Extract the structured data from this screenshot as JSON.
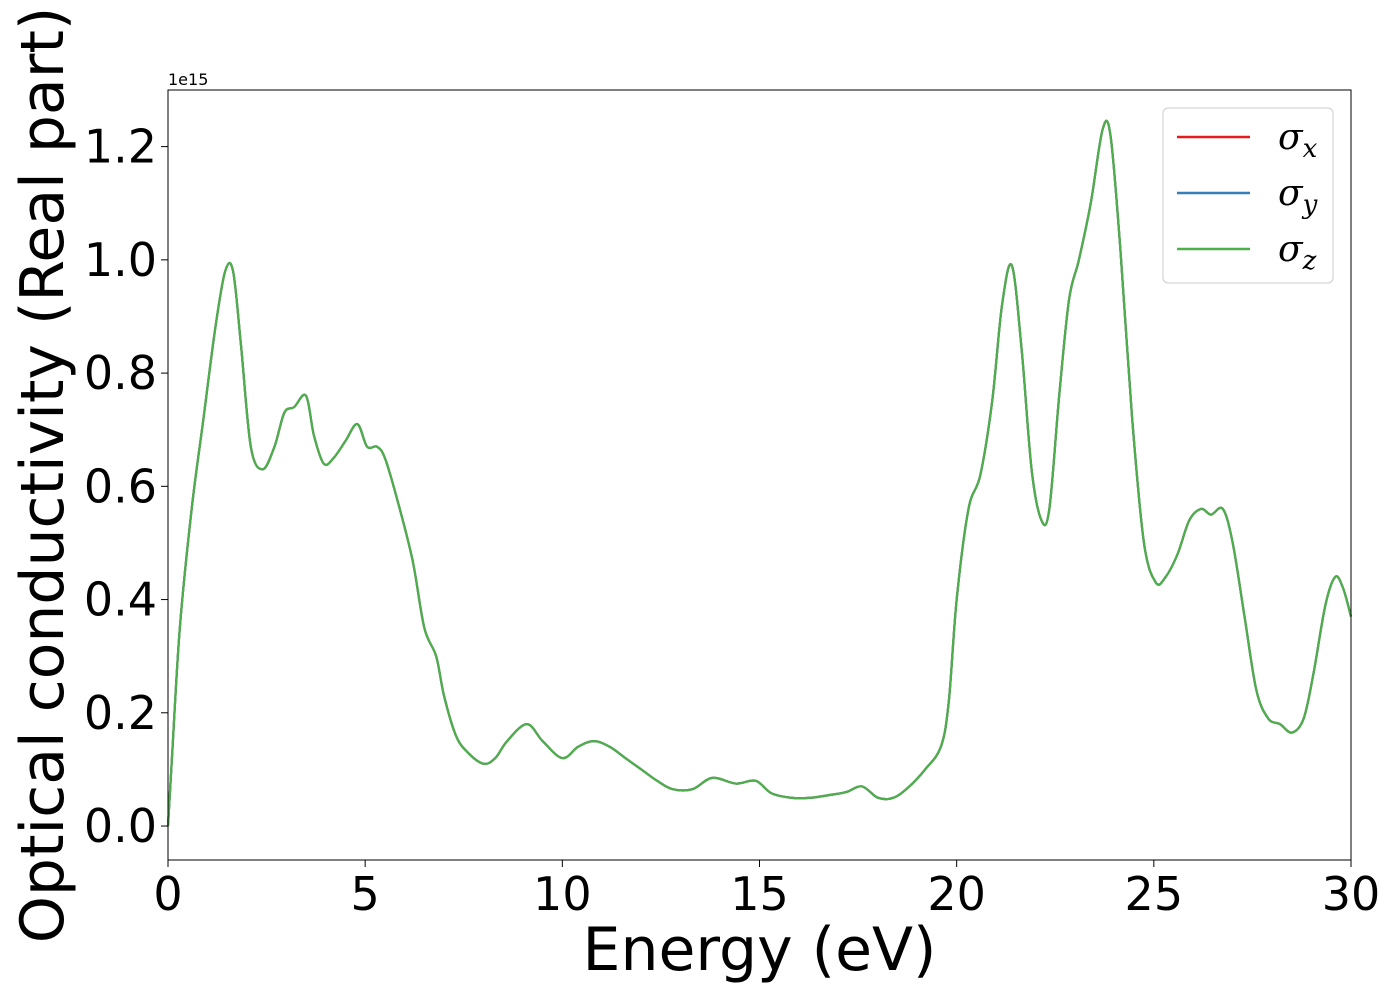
{
  "chart_data": {
    "type": "line",
    "xlabel": "Energy (eV)",
    "ylabel": "Optical conductivity (Real part)",
    "y_offset_text": "1e15",
    "y_scale": 1000000000000000.0,
    "xlim": [
      0,
      30
    ],
    "ylim": [
      -0.06,
      1.3
    ],
    "xticks": [
      0,
      5,
      10,
      15,
      20,
      25,
      30
    ],
    "xtick_labels": [
      "0",
      "5",
      "10",
      "15",
      "20",
      "25",
      "30"
    ],
    "yticks": [
      0.0,
      0.2,
      0.4,
      0.6,
      0.8,
      1.0,
      1.2
    ],
    "ytick_labels": [
      "0.0",
      "0.2",
      "0.4",
      "0.6",
      "0.8",
      "1.0",
      "1.2"
    ],
    "grid": false,
    "legend_position": "top-right",
    "series": [
      {
        "name": "σx",
        "symbol": "σ",
        "sub": "x",
        "color": "#e41a1c"
      },
      {
        "name": "σy",
        "symbol": "σ",
        "sub": "y",
        "color": "#377eb8"
      },
      {
        "name": "σz",
        "symbol": "σ",
        "sub": "z",
        "color": "#4daf4a"
      }
    ],
    "x": [
      0,
      0.1,
      0.3,
      0.6,
      0.9,
      1.2,
      1.45,
      1.65,
      1.85,
      2.1,
      2.4,
      2.7,
      2.95,
      3.2,
      3.5,
      3.7,
      3.95,
      4.2,
      4.5,
      4.8,
      5.05,
      5.3,
      5.5,
      5.8,
      6.2,
      6.5,
      6.8,
      7.0,
      7.3,
      7.6,
      8.0,
      8.3,
      8.6,
      9.1,
      9.5,
      10.0,
      10.4,
      10.8,
      11.2,
      11.6,
      12.0,
      12.4,
      12.8,
      13.3,
      13.8,
      14.4,
      14.9,
      15.3,
      15.8,
      16.3,
      16.8,
      17.2,
      17.6,
      18.0,
      18.4,
      18.8,
      19.2,
      19.6,
      19.8,
      20.0,
      20.3,
      20.6,
      20.9,
      21.15,
      21.4,
      21.65,
      21.9,
      22.15,
      22.35,
      22.6,
      22.85,
      23.1,
      23.4,
      23.7,
      23.9,
      24.15,
      24.45,
      24.75,
      25.05,
      25.3,
      25.6,
      25.9,
      26.2,
      26.45,
      26.75,
      27.0,
      27.3,
      27.6,
      27.9,
      28.2,
      28.5,
      28.8,
      29.05,
      29.35,
      29.6,
      29.8,
      30.0
    ],
    "values_x": [
      0.0,
      0.12,
      0.35,
      0.56,
      0.72,
      0.88,
      0.98,
      0.98,
      0.85,
      0.67,
      0.63,
      0.67,
      0.73,
      0.74,
      0.76,
      0.69,
      0.64,
      0.65,
      0.68,
      0.71,
      0.67,
      0.67,
      0.65,
      0.58,
      0.47,
      0.35,
      0.3,
      0.23,
      0.16,
      0.13,
      0.11,
      0.12,
      0.15,
      0.18,
      0.15,
      0.12,
      0.14,
      0.15,
      0.14,
      0.12,
      0.1,
      0.08,
      0.065,
      0.065,
      0.085,
      0.075,
      0.08,
      0.058,
      0.05,
      0.05,
      0.055,
      0.06,
      0.07,
      0.05,
      0.05,
      0.07,
      0.1,
      0.14,
      0.22,
      0.4,
      0.56,
      0.62,
      0.75,
      0.92,
      0.99,
      0.84,
      0.63,
      0.54,
      0.56,
      0.76,
      0.93,
      1.0,
      1.1,
      1.23,
      1.22,
      1.02,
      0.72,
      0.5,
      0.43,
      0.44,
      0.48,
      0.54,
      0.56,
      0.55,
      0.56,
      0.5,
      0.37,
      0.24,
      0.19,
      0.18,
      0.165,
      0.19,
      0.27,
      0.39,
      0.44,
      0.42,
      0.37
    ],
    "values_y": [
      0.0,
      0.12,
      0.35,
      0.56,
      0.72,
      0.88,
      0.98,
      0.98,
      0.85,
      0.67,
      0.63,
      0.67,
      0.73,
      0.74,
      0.76,
      0.69,
      0.64,
      0.65,
      0.68,
      0.71,
      0.67,
      0.67,
      0.65,
      0.58,
      0.47,
      0.35,
      0.3,
      0.23,
      0.16,
      0.13,
      0.11,
      0.12,
      0.15,
      0.18,
      0.15,
      0.12,
      0.14,
      0.15,
      0.14,
      0.12,
      0.1,
      0.08,
      0.065,
      0.065,
      0.085,
      0.075,
      0.08,
      0.058,
      0.05,
      0.05,
      0.055,
      0.06,
      0.07,
      0.05,
      0.05,
      0.07,
      0.1,
      0.14,
      0.22,
      0.4,
      0.56,
      0.62,
      0.75,
      0.92,
      0.99,
      0.84,
      0.63,
      0.54,
      0.56,
      0.76,
      0.93,
      1.0,
      1.1,
      1.23,
      1.22,
      1.02,
      0.72,
      0.5,
      0.43,
      0.44,
      0.48,
      0.54,
      0.56,
      0.55,
      0.56,
      0.5,
      0.37,
      0.24,
      0.19,
      0.18,
      0.165,
      0.19,
      0.27,
      0.39,
      0.44,
      0.42,
      0.37
    ],
    "values_z": [
      0.0,
      0.12,
      0.35,
      0.56,
      0.72,
      0.88,
      0.98,
      0.98,
      0.85,
      0.67,
      0.63,
      0.67,
      0.73,
      0.74,
      0.76,
      0.69,
      0.64,
      0.65,
      0.68,
      0.71,
      0.67,
      0.67,
      0.65,
      0.58,
      0.47,
      0.35,
      0.3,
      0.23,
      0.16,
      0.13,
      0.11,
      0.12,
      0.15,
      0.18,
      0.15,
      0.12,
      0.14,
      0.15,
      0.14,
      0.12,
      0.1,
      0.08,
      0.065,
      0.065,
      0.085,
      0.075,
      0.08,
      0.058,
      0.05,
      0.05,
      0.055,
      0.06,
      0.07,
      0.05,
      0.05,
      0.07,
      0.1,
      0.14,
      0.22,
      0.4,
      0.56,
      0.62,
      0.75,
      0.92,
      0.99,
      0.84,
      0.63,
      0.54,
      0.56,
      0.76,
      0.93,
      1.0,
      1.1,
      1.23,
      1.22,
      1.02,
      0.72,
      0.5,
      0.43,
      0.44,
      0.48,
      0.54,
      0.56,
      0.55,
      0.56,
      0.5,
      0.37,
      0.24,
      0.19,
      0.18,
      0.165,
      0.19,
      0.27,
      0.39,
      0.44,
      0.42,
      0.37
    ]
  }
}
